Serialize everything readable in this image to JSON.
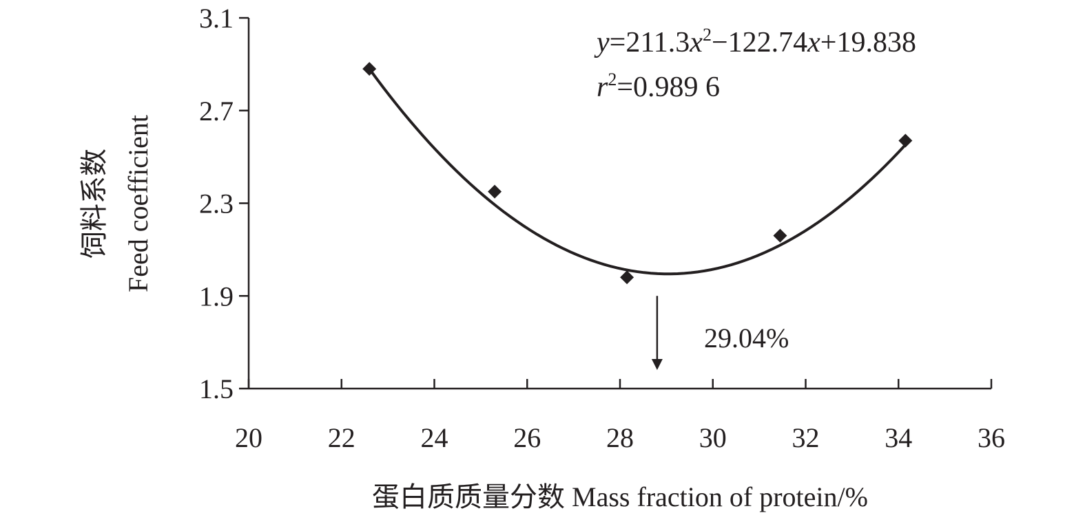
{
  "chart_data": {
    "type": "scatter",
    "xlabel": "蛋白质质量分数 Mass fraction of protein/%",
    "ylabel_cn": "饲料系数",
    "ylabel_en": "Feed coefficient",
    "xlim": [
      20,
      36
    ],
    "ylim": [
      1.5,
      3.1
    ],
    "x_ticks": [
      "20",
      "22",
      "24",
      "26",
      "28",
      "30",
      "32",
      "34",
      "36"
    ],
    "y_ticks": [
      "1.5",
      "1.9",
      "2.3",
      "2.7",
      "3.1"
    ],
    "points": [
      {
        "x": 22.6,
        "y": 2.88
      },
      {
        "x": 25.3,
        "y": 2.35
      },
      {
        "x": 28.15,
        "y": 1.98
      },
      {
        "x": 31.45,
        "y": 2.16
      },
      {
        "x": 34.15,
        "y": 2.57
      }
    ],
    "fit": {
      "type": "quadratic",
      "x_range": [
        22.6,
        34.15
      ],
      "vertex_x": 29.04,
      "vertex_y": 1.995
    },
    "equation_line1": {
      "y": "y",
      "eq": "=211.3",
      "x1": "x",
      "exp": "2",
      "mid": "−122.74",
      "x2": "x",
      "tail": "+19.838"
    },
    "equation_line2": {
      "r": "r",
      "exp": "2",
      "val": "=0.989 6"
    },
    "annotation": {
      "label": "29.04%",
      "x": 28.8,
      "y_from": 1.9,
      "y_to": 1.58
    }
  }
}
